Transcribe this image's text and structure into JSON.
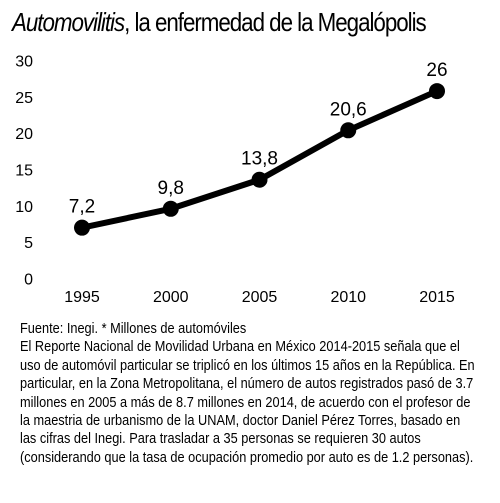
{
  "title": {
    "italic": "Automovilitis",
    "rest": ", la enfermedad de la Megalópolis"
  },
  "chart_data": {
    "type": "line",
    "x": [
      "1995",
      "2000",
      "2005",
      "2010",
      "2015"
    ],
    "series": [
      {
        "values": [
          7.2,
          9.8,
          13.8,
          20.6,
          26
        ],
        "labels": [
          "7,2",
          "9,8",
          "13,8",
          "20,6",
          "26"
        ]
      }
    ],
    "yticks": [
      "0",
      "5",
      "10",
      "15",
      "20",
      "25",
      "30"
    ],
    "ylim": [
      0,
      30
    ],
    "grid": false,
    "line_color": "#000000"
  },
  "source": "Fuente: Inegi. * Millones de automóviles",
  "body_text": "El Reporte Nacional de Movilidad Urbana en México 2014-2015 señala que el uso de automóvil particular se triplicó en los últimos 15 años en la República. En particular, en la Zona Metropolitana, el número de autos registrados pasó de 3.7 millones  en 2005  a más de 8.7 millones  en 2014, de acuerdo con el profesor de la maestria de urbanismo de la UNAM, doctor Daniel Pérez Torres, basado en las cifras del Inegi. Para trasladar a 35 personas se requieren 30 autos (considerando que la tasa de ocupación promedio por auto es de 1.2 personas)."
}
